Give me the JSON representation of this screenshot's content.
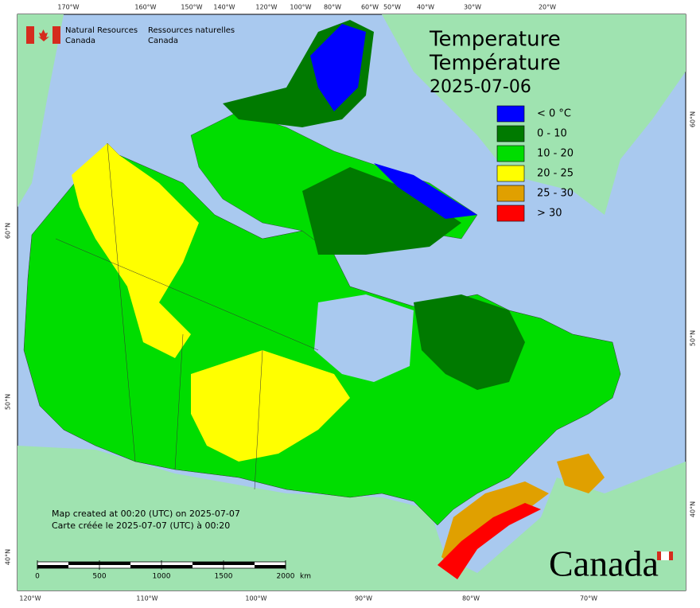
{
  "header": {
    "org_en": [
      "Natural Resources",
      "Canada"
    ],
    "org_fr": [
      "Ressources naturelles",
      "Canada"
    ]
  },
  "title": [
    "Temperature",
    "Température",
    "2025-07-06"
  ],
  "legend": [
    {
      "label": "< 0 °C",
      "color": "#0000ff"
    },
    {
      "label": "0 - 10",
      "color": "#007a00"
    },
    {
      "label": "10 - 20",
      "color": "#00dd00"
    },
    {
      "label": "20 - 25",
      "color": "#ffff00"
    },
    {
      "label": "25 - 30",
      "color": "#e0a000"
    },
    {
      "label": "> 30",
      "color": "#ff0000"
    }
  ],
  "graticule": {
    "top": [
      "170°W",
      "160°W",
      "150°W",
      "140°W",
      "120°W",
      "100°W",
      "80°W",
      "60°W",
      "50°W",
      "40°W",
      "30°W",
      "20°W"
    ],
    "bottom": [
      "120°W",
      "110°W",
      "100°W",
      "90°W",
      "80°W",
      "70°W"
    ],
    "left": [
      "60°N",
      "50°N",
      "40°N"
    ],
    "right": [
      "60°N",
      "50°N",
      "40°N"
    ]
  },
  "credits": [
    "Map created at 00:20 (UTC) on 2025-07-07",
    "Carte créée le 2025-07-07 (UTC) à 00:20"
  ],
  "scale_bar": {
    "ticks": [
      0,
      500,
      1000,
      1500,
      2000
    ],
    "unit": "km"
  },
  "wordmark": "Canada"
}
